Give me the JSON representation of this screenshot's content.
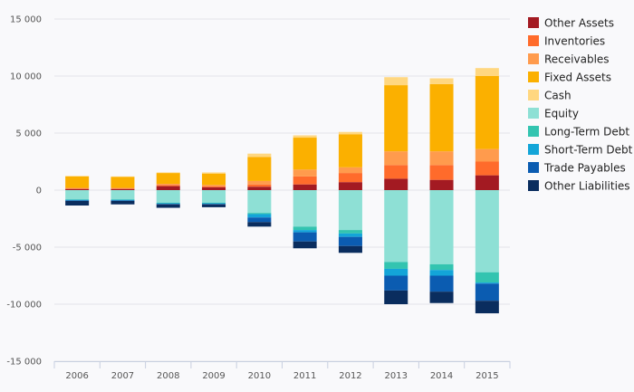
{
  "chart_data": {
    "type": "bar",
    "stacked": true,
    "categories": [
      "2006",
      "2007",
      "2008",
      "2009",
      "2010",
      "2011",
      "2012",
      "2013",
      "2014",
      "2015"
    ],
    "ylim": [
      -15000,
      15000
    ],
    "yticks": [
      15000,
      10000,
      5000,
      0,
      -5000,
      -10000,
      -15000
    ],
    "ytick_labels": [
      "15 000",
      "10 000",
      "5 000",
      "0",
      "-5 000",
      "-10 000",
      "-15 000"
    ],
    "grid": true,
    "legend_position": "right",
    "series": [
      {
        "name": "Other Assets",
        "color": "#a31a22",
        "values": [
          100,
          100,
          350,
          250,
          300,
          500,
          700,
          1000,
          900,
          1300
        ]
      },
      {
        "name": "Inventories",
        "color": "#ff6b2b",
        "values": [
          50,
          50,
          100,
          100,
          200,
          700,
          800,
          1200,
          1300,
          1200
        ]
      },
      {
        "name": "Receivables",
        "color": "#ff9b4d",
        "values": [
          50,
          50,
          100,
          100,
          300,
          600,
          500,
          1200,
          1200,
          1100
        ]
      },
      {
        "name": "Fixed Assets",
        "color": "#fbb000",
        "values": [
          1000,
          950,
          950,
          1000,
          2100,
          2800,
          2900,
          5800,
          5900,
          6400
        ]
      },
      {
        "name": "Cash",
        "color": "#ffd780",
        "values": [
          50,
          50,
          50,
          100,
          300,
          200,
          200,
          700,
          500,
          700
        ]
      },
      {
        "name": "Equity",
        "color": "#8ee0d5",
        "values": [
          -800,
          -800,
          -1100,
          -1100,
          -2000,
          -3200,
          -3500,
          -6300,
          -6500,
          -7200
        ]
      },
      {
        "name": "Long-Term Debt",
        "color": "#33c4b0",
        "values": [
          -50,
          -50,
          -50,
          -50,
          -100,
          -300,
          -300,
          -600,
          -500,
          -900
        ]
      },
      {
        "name": "Short-Term Debt",
        "color": "#13a5d8",
        "values": [
          -50,
          -50,
          -50,
          -50,
          -300,
          -200,
          -300,
          -600,
          -500,
          -100
        ]
      },
      {
        "name": "Trade Payables",
        "color": "#0b5cb1",
        "values": [
          -50,
          -50,
          -50,
          -50,
          -400,
          -800,
          -800,
          -1300,
          -1400,
          -1500
        ]
      },
      {
        "name": "Other Liabilities",
        "color": "#0a2d5e",
        "values": [
          -400,
          -300,
          -300,
          -250,
          -400,
          -600,
          -600,
          -1200,
          -1000,
          -1100
        ]
      }
    ]
  }
}
